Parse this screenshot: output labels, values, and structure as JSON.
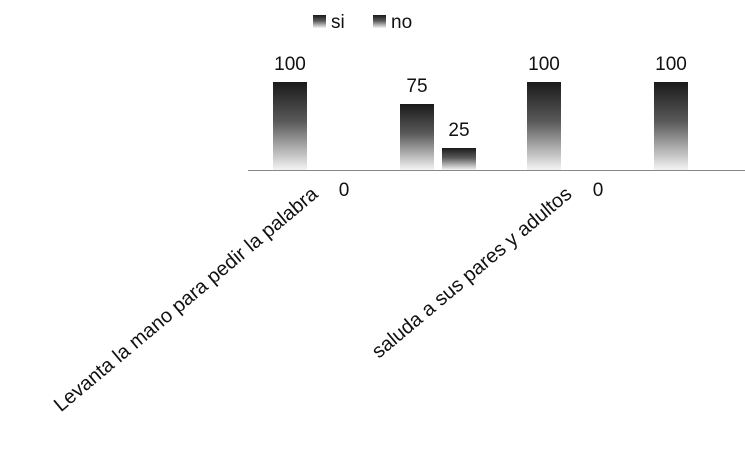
{
  "chart_data": {
    "type": "bar",
    "categories": [
      "Levanta la mano para pedir la palabra",
      "",
      "saluda a sus pares y adultos",
      ""
    ],
    "series": [
      {
        "name": "si",
        "values": [
          100,
          75,
          100,
          100
        ]
      },
      {
        "name": "no",
        "values": [
          0,
          25,
          0,
          null
        ]
      }
    ],
    "ylim": [
      0,
      100
    ],
    "grid": false,
    "legend": "top-center",
    "colors": {
      "bar_dark": "#1a1a1a",
      "bar_light": "#f4f4f4",
      "axis": "#888888"
    }
  }
}
